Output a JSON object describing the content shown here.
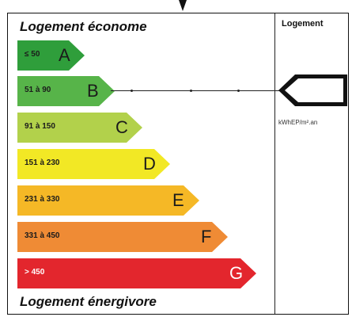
{
  "header": {
    "economical_label": "Logement économe",
    "energy_intensive_label": "Logement énergivore",
    "column_title": "Logement",
    "unit": "kWhEP/m².an"
  },
  "classes": [
    {
      "range": "≤ 50",
      "letter": "A",
      "color": "#2f9e3b"
    },
    {
      "range": "51 à 90",
      "letter": "B",
      "color": "#57b449"
    },
    {
      "range": "91 à 150",
      "letter": "C",
      "color": "#b2d14b"
    },
    {
      "range": "151 à 230",
      "letter": "D",
      "color": "#f2e825"
    },
    {
      "range": "231 à 330",
      "letter": "E",
      "color": "#f5b826"
    },
    {
      "range": "331 à 450",
      "letter": "F",
      "color": "#ef8b35"
    },
    {
      "range": "> 450",
      "letter": "G",
      "color": "#e3262d"
    }
  ],
  "current_class": "B"
}
